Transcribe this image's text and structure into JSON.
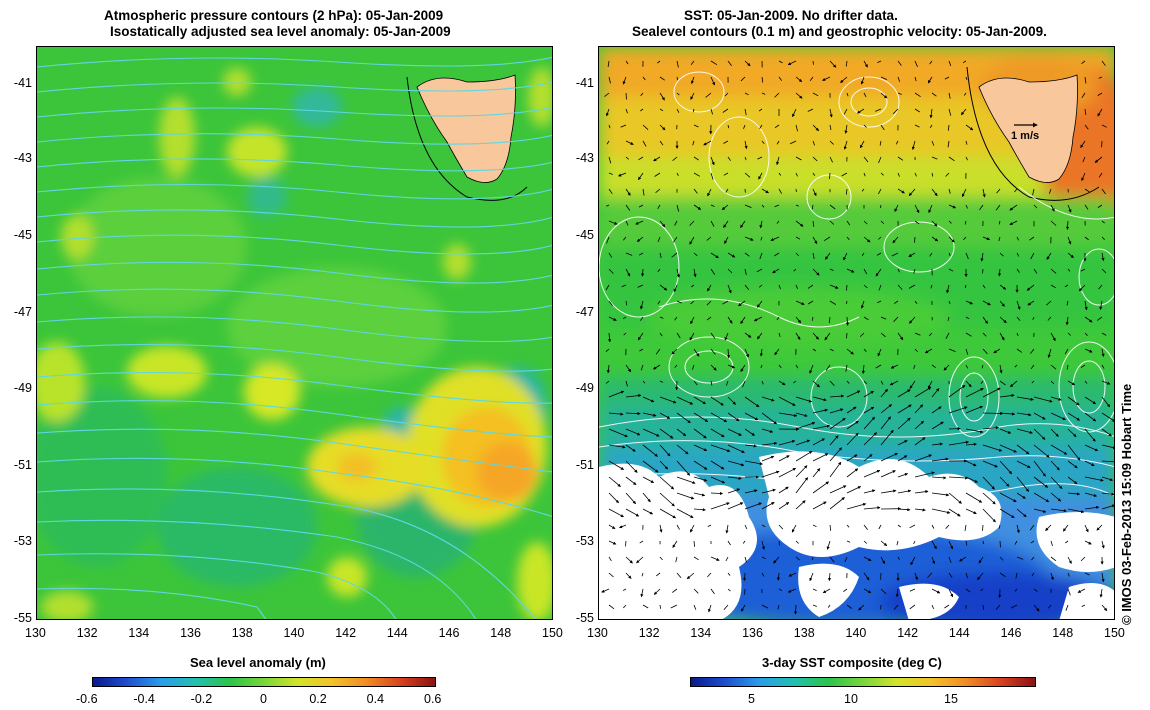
{
  "left_panel": {
    "title_line1": "Atmospheric pressure contours (2 hPa): 05-Jan-2009",
    "title_line2": "Isostatically adjusted sea level anomaly: 05-Jan-2009",
    "colorbar_label": "Sea level anomaly (m)",
    "colorbar_ticks": [
      "-0.6",
      "-0.4",
      "-0.2",
      "0",
      "0.2",
      "0.4",
      "0.6"
    ]
  },
  "right_panel": {
    "title_line1": "SST: 05-Jan-2009. No drifter data.",
    "title_line2": "Sealevel contours (0.1 m) and geostrophic velocity: 05-Jan-2009.",
    "colorbar_label": "3-day SST composite (deg C)",
    "colorbar_ticks": [
      "5",
      "10",
      "15"
    ],
    "velocity_scale_label": "1 m/s"
  },
  "axes": {
    "x_ticks": [
      "130",
      "132",
      "134",
      "136",
      "138",
      "140",
      "142",
      "144",
      "146",
      "148",
      "150"
    ],
    "y_ticks": [
      "-41",
      "-43",
      "-45",
      "-47",
      "-49",
      "-51",
      "-53",
      "-55"
    ]
  },
  "credit": "© IMOS 03-Feb-2013 15:09 Hobart Time",
  "colors": {
    "land": "#f9c79c",
    "pressure_contour": "#5fd7e0",
    "sealevel_contour": "#ffffff",
    "missing_data": "#ffffff"
  }
}
